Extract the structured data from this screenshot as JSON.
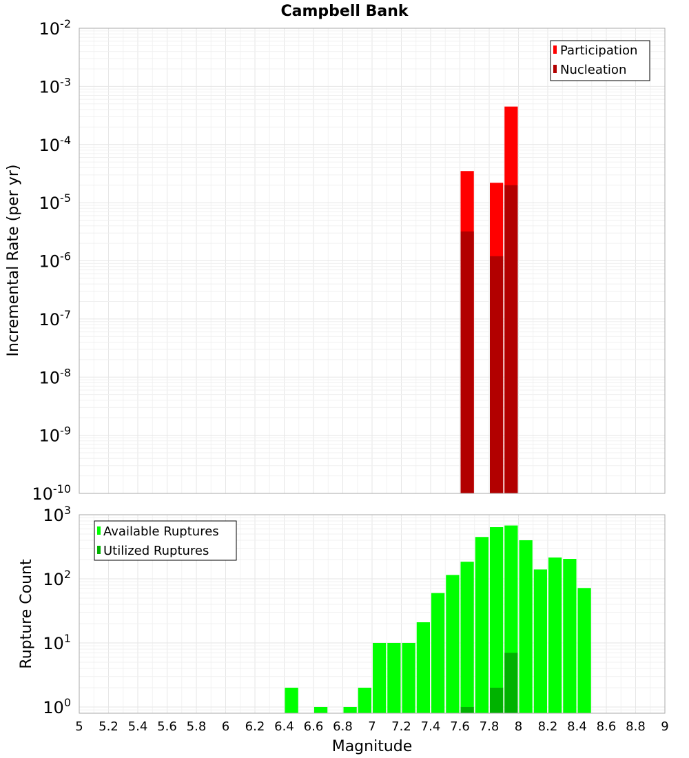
{
  "title": "Campbell Bank",
  "xlabel": "Magnitude",
  "x_ticks": [
    "5",
    "5.2",
    "5.4",
    "5.6",
    "5.8",
    "6",
    "6.2",
    "6.4",
    "6.6",
    "6.8",
    "7",
    "7.2",
    "7.4",
    "7.6",
    "7.8",
    "8",
    "8.2",
    "8.4",
    "8.6",
    "8.8",
    "9"
  ],
  "colors": {
    "participation": "#ff0000",
    "nucleation": "#b20000",
    "available": "#00ff00",
    "utilized": "#00b200",
    "grid": "#e6e6e6",
    "axis": "#aaaaaa"
  },
  "chart_data": [
    {
      "type": "bar",
      "title": "Campbell Bank",
      "xlabel": "Magnitude",
      "ylabel": "Incremental Rate (per yr)",
      "yscale": "log",
      "ylim": [
        1e-10,
        0.01
      ],
      "xlim": [
        5,
        9
      ],
      "bin_width": 0.1,
      "y_tick_mantissa": [
        "10",
        "10",
        "10",
        "10",
        "10",
        "10",
        "10",
        "10",
        "10"
      ],
      "y_tick_exponents": [
        "-10",
        "-9",
        "-8",
        "-7",
        "-6",
        "-5",
        "-4",
        "-3",
        "-2"
      ],
      "legend": [
        "Participation",
        "Nucleation"
      ],
      "legend_position": "top-right",
      "series": [
        {
          "name": "Participation",
          "x": [
            7.65,
            7.85,
            7.95
          ],
          "values": [
            3.5e-05,
            2.2e-05,
            0.00045
          ]
        },
        {
          "name": "Nucleation",
          "x": [
            7.65,
            7.85,
            7.95
          ],
          "values": [
            3.2e-06,
            1.2e-06,
            2e-05
          ]
        }
      ]
    },
    {
      "type": "bar",
      "xlabel": "Magnitude",
      "ylabel": "Rupture Count",
      "yscale": "log",
      "ylim": [
        0.8,
        1000
      ],
      "xlim": [
        5,
        9
      ],
      "bin_width": 0.1,
      "y_tick_mantissa": [
        "10",
        "10",
        "10",
        "10"
      ],
      "y_tick_exponents": [
        "0",
        "1",
        "2",
        "3"
      ],
      "legend": [
        "Available Ruptures",
        "Utilized Ruptures"
      ],
      "legend_position": "top-left",
      "series": [
        {
          "name": "Available Ruptures",
          "x": [
            6.45,
            6.65,
            6.85,
            6.95,
            7.05,
            7.15,
            7.25,
            7.35,
            7.45,
            7.55,
            7.65,
            7.75,
            7.85,
            7.95,
            8.05,
            8.15,
            8.25,
            8.35,
            8.45
          ],
          "values": [
            2,
            1,
            1,
            2,
            10,
            10,
            10,
            21,
            60,
            115,
            185,
            450,
            640,
            680,
            400,
            140,
            215,
            205,
            72
          ]
        },
        {
          "name": "Utilized Ruptures",
          "x": [
            7.65,
            7.85,
            7.95
          ],
          "values": [
            1,
            2,
            7
          ]
        }
      ]
    }
  ]
}
